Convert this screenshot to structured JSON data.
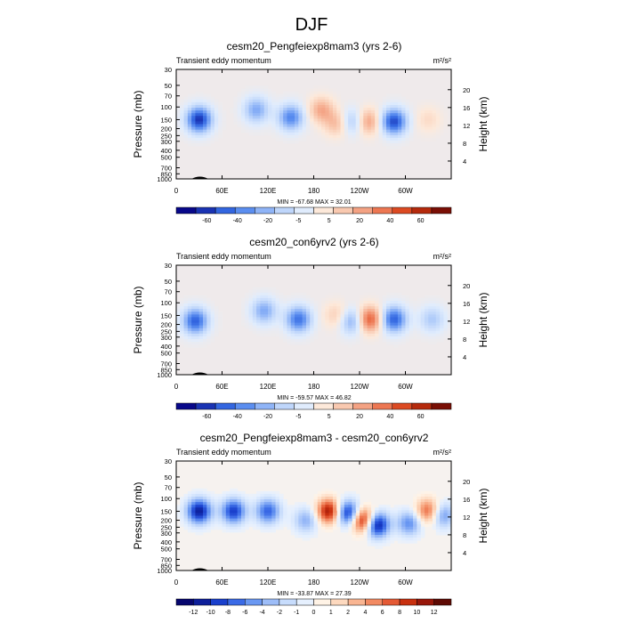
{
  "page_title": "DJF",
  "xaxis_ticks": [
    "0",
    "60E",
    "120E",
    "180",
    "120W",
    "60W"
  ],
  "yaxis_left_ticks": [
    "30",
    "50",
    "70",
    "100",
    "150",
    "200",
    "250",
    "300",
    "400",
    "500",
    "700",
    "850",
    "1000"
  ],
  "yaxis_right_ticks": [
    "20",
    "16",
    "12",
    "8",
    "4"
  ],
  "ylabel_left": "Pressure (mb)",
  "ylabel_right": "Height (km)",
  "colors": {
    "abs_scale": [
      "#08088a",
      "#1a33b3",
      "#3366e0",
      "#5b8ef0",
      "#8fb4f7",
      "#bfd6fb",
      "#e0ecfd",
      "#fde9da",
      "#f9c9b0",
      "#f4a283",
      "#ed7752",
      "#dc4a22",
      "#b52a0c",
      "#7a0f05"
    ],
    "diff_scale": [
      "#06066e",
      "#0d1f9a",
      "#1a40cc",
      "#3a6ae6",
      "#6a98f2",
      "#9dbdf8",
      "#c7dcfc",
      "#e6f0fe",
      "#fff3e6",
      "#fdd9bf",
      "#f9b592",
      "#f28a62",
      "#e45a35",
      "#c8300f",
      "#98170a",
      "#5e0a04"
    ]
  },
  "chart_data": [
    {
      "type": "heatmap",
      "title": "cesm20_Pengfeiexp8mam3 (yrs 2-6)",
      "subtitle": "Transient eddy momentum",
      "units": "m²/s²",
      "stats": "MIN = -67.68  MAX = 32.01",
      "colorbar_ticks": [
        "-60",
        "-40",
        "-20",
        "-5",
        "5",
        "20",
        "40",
        "60"
      ],
      "xlabel": "",
      "ylabel": "Pressure (mb)",
      "ylabel_right": "Height (km)",
      "x_range": [
        0,
        360
      ],
      "y_range_mb": [
        1000,
        30
      ],
      "y_log": true,
      "data_min": -67.68,
      "data_max": 32.01,
      "features": [
        {
          "lon": 30,
          "mb": 150,
          "value": -60
        },
        {
          "lon": 105,
          "mb": 110,
          "value": -30
        },
        {
          "lon": 150,
          "mb": 140,
          "value": -40
        },
        {
          "lon": 190,
          "mb": 110,
          "value": 25
        },
        {
          "lon": 210,
          "mb": 170,
          "value": 20
        },
        {
          "lon": 232,
          "mb": 160,
          "value": -25
        },
        {
          "lon": 250,
          "mb": 160,
          "value": 30
        },
        {
          "lon": 285,
          "mb": 160,
          "value": -55
        },
        {
          "lon": 330,
          "mb": 150,
          "value": 10
        }
      ]
    },
    {
      "type": "heatmap",
      "title": "cesm20_con6yrv2 (yrs 2-6)",
      "subtitle": "Transient eddy momentum",
      "units": "m²/s²",
      "stats": "MIN = -59.57  MAX = 46.82",
      "colorbar_ticks": [
        "-60",
        "-40",
        "-20",
        "-5",
        "5",
        "20",
        "40",
        "60"
      ],
      "xlabel": "",
      "ylabel": "Pressure (mb)",
      "ylabel_right": "Height (km)",
      "x_range": [
        0,
        360
      ],
      "y_range_mb": [
        1000,
        30
      ],
      "y_log": true,
      "data_min": -59.57,
      "data_max": 46.82,
      "features": [
        {
          "lon": 25,
          "mb": 180,
          "value": -50
        },
        {
          "lon": 115,
          "mb": 130,
          "value": -30
        },
        {
          "lon": 160,
          "mb": 170,
          "value": -45
        },
        {
          "lon": 210,
          "mb": 150,
          "value": 15
        },
        {
          "lon": 230,
          "mb": 180,
          "value": -30
        },
        {
          "lon": 253,
          "mb": 170,
          "value": 45
        },
        {
          "lon": 285,
          "mb": 170,
          "value": -50
        },
        {
          "lon": 335,
          "mb": 170,
          "value": -20
        }
      ]
    },
    {
      "type": "heatmap",
      "title": "cesm20_Pengfeiexp8mam3 - cesm20_con6yrv2",
      "subtitle": "Transient eddy momentum",
      "units": "m²/s²",
      "stats": "MIN = -33.87  MAX = 27.39",
      "colorbar_ticks": [
        "-12",
        "-10",
        "-8",
        "-6",
        "-4",
        "-2",
        "-1",
        "0",
        "1",
        "2",
        "4",
        "6",
        "8",
        "10",
        "12"
      ],
      "xlabel": "",
      "ylabel": "Pressure (mb)",
      "ylabel_right": "Height (km)",
      "x_range": [
        0,
        360
      ],
      "y_range_mb": [
        1000,
        30
      ],
      "y_log": true,
      "data_min": -33.87,
      "data_max": 27.39,
      "features": [
        {
          "lon": 30,
          "mb": 150,
          "value": -14
        },
        {
          "lon": 75,
          "mb": 150,
          "value": -12
        },
        {
          "lon": 120,
          "mb": 150,
          "value": -10
        },
        {
          "lon": 170,
          "mb": 200,
          "value": -6
        },
        {
          "lon": 200,
          "mb": 150,
          "value": 14
        },
        {
          "lon": 225,
          "mb": 160,
          "value": -14
        },
        {
          "lon": 245,
          "mb": 200,
          "value": 16
        },
        {
          "lon": 262,
          "mb": 230,
          "value": -16
        },
        {
          "lon": 305,
          "mb": 220,
          "value": -8
        },
        {
          "lon": 330,
          "mb": 150,
          "value": 10
        },
        {
          "lon": 348,
          "mb": 170,
          "value": -8
        }
      ]
    }
  ]
}
